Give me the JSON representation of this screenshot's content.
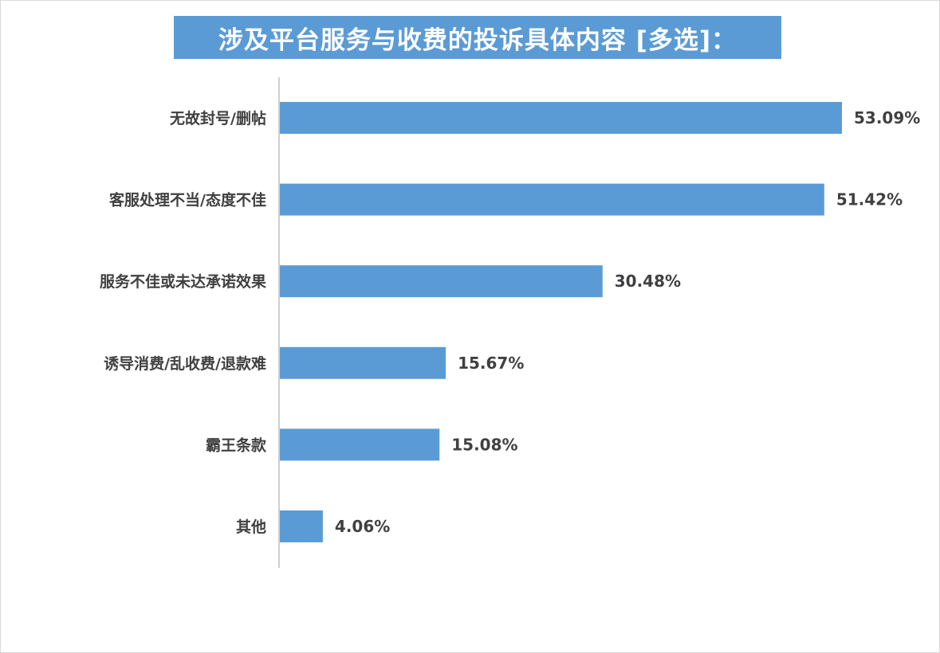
{
  "chart_data": {
    "type": "bar",
    "orientation": "horizontal",
    "title": "涉及平台服务与收费的投诉具体内容 [多选]：",
    "categories": [
      "无故封号/删帖",
      "客服处理不当/态度不佳",
      "服务不佳或未达承诺效果",
      "诱导消费/乱收费/退款难",
      "霸王条款",
      "其他"
    ],
    "values": [
      53.09,
      51.42,
      30.48,
      15.67,
      15.08,
      4.06
    ],
    "value_labels": [
      "53.09%",
      "51.42%",
      "30.48%",
      "15.67%",
      "15.08%",
      "4.06%"
    ],
    "unit": "%",
    "xlim": [
      0,
      60
    ],
    "grid": false,
    "legend": "none",
    "colors": {
      "bar": "#5b9bd5",
      "title_bg": "#5b9bd5",
      "title_text": "#ffffff",
      "label_text": "#404040",
      "axis": "#bfbfbf"
    }
  }
}
